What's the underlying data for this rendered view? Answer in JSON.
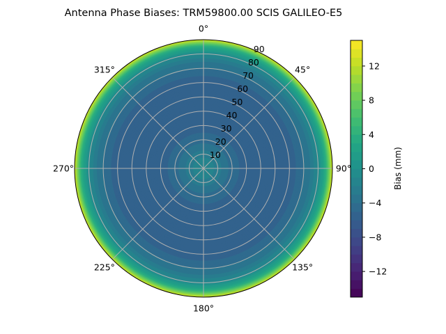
{
  "chart_data": {
    "type": "heatmap",
    "projection": "polar",
    "title": "Antenna Phase Biases: TRM59800.00     SCIS GALILEO-E5",
    "theta_direction": "clockwise",
    "theta_zero": "top",
    "theta_tick_labels": [
      "0°",
      "45°",
      "90°",
      "135°",
      "180°",
      "225°",
      "270°",
      "315°"
    ],
    "theta_ticks": [
      0,
      45,
      90,
      135,
      180,
      225,
      270,
      315
    ],
    "radial_ticks": [
      10,
      20,
      30,
      40,
      50,
      60,
      70,
      80,
      90
    ],
    "radial_tick_labels": [
      "10",
      "20",
      "30",
      "40",
      "50",
      "60",
      "70",
      "80",
      "90"
    ],
    "rlim": [
      0,
      90
    ],
    "grid": true,
    "colormap": "viridis",
    "zenith_profile": {
      "zenith_deg": [
        0,
        5,
        10,
        15,
        20,
        25,
        30,
        35,
        40,
        45,
        50,
        55,
        60,
        65,
        70,
        75,
        80,
        85,
        90
      ],
      "bias_mm": [
        -1,
        -1.5,
        -2.5,
        -3.5,
        -4.5,
        -5,
        -5.5,
        -5.5,
        -5.5,
        -6,
        -6,
        -6,
        -5.5,
        -5,
        -4,
        -3,
        -1,
        3,
        12
      ]
    },
    "colorbar": {
      "label": "Bias (mm)",
      "range": [
        -15,
        15
      ],
      "ticks": [
        -12,
        -8,
        -4,
        0,
        4,
        8,
        12
      ],
      "tick_labels": [
        "−12",
        "−8",
        "−4",
        "0",
        "4",
        "8",
        "12"
      ],
      "levels_step": 1
    }
  }
}
